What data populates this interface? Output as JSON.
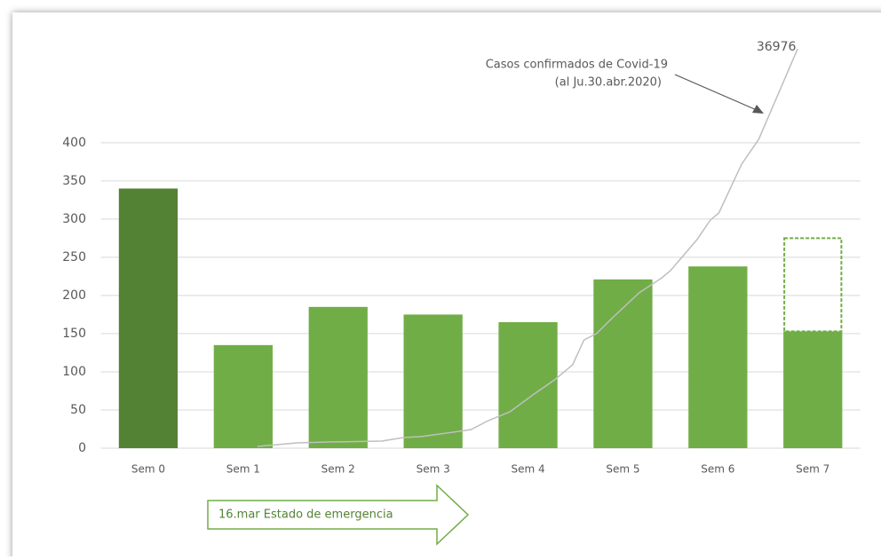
{
  "chart_data": {
    "type": "bar",
    "categories": [
      "Sem 0",
      "Sem 1",
      "Sem 2",
      "Sem 3",
      "Sem 4",
      "Sem 5",
      "Sem 6",
      "Sem 7"
    ],
    "values": [
      340,
      135,
      185,
      175,
      165,
      221,
      238,
      153
    ],
    "colors": [
      "#548235",
      "#70ad47",
      "#70ad47",
      "#70ad47",
      "#70ad47",
      "#70ad47",
      "#70ad47",
      "#70ad47"
    ],
    "outline_values": [
      null,
      null,
      null,
      null,
      null,
      null,
      null,
      275
    ],
    "outline_color": "#70ad47",
    "ylim": [
      0,
      523
    ],
    "yticks": [
      0,
      50,
      100,
      150,
      200,
      250,
      300,
      350,
      400
    ],
    "grid": true,
    "xlim": [
      -0.5,
      7.5
    ],
    "y2lim": [
      0,
      36976
    ],
    "line": {
      "color": "#bfbfbf",
      "axis": "y2",
      "x": [
        1.15,
        1.57,
        1.9,
        2.46,
        2.69,
        2.87,
        3.21,
        3.4,
        3.58,
        3.81,
        4.05,
        4.28,
        4.47,
        4.59,
        4.72,
        4.89,
        5.17,
        5.41,
        5.5,
        5.78,
        5.92,
        6.01,
        6.25,
        6.43,
        6.84
      ],
      "values": [
        164,
        493,
        575,
        657,
        986,
        1068,
        1479,
        1725,
        2547,
        3369,
        4930,
        6327,
        7724,
        10025,
        10600,
        12079,
        14380,
        15777,
        16435,
        19311,
        21119,
        21776,
        26296,
        28597,
        36976
      ]
    },
    "annotation": [
      "Casos confirmados de Covid-19",
      "(al Ju.30.abr.2020)"
    ],
    "arrow_label": "16.mar Estado de emergencia"
  }
}
